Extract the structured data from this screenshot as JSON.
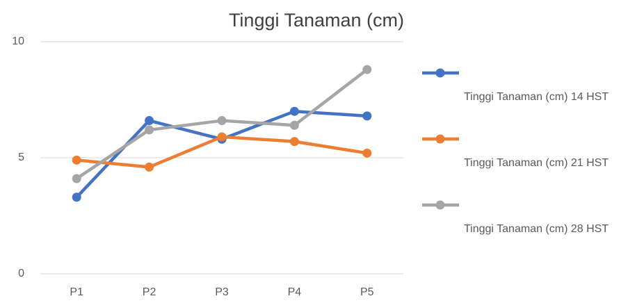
{
  "chart_data": {
    "type": "line",
    "title": "Tinggi Tanaman (cm)",
    "categories": [
      "P1",
      "P2",
      "P3",
      "P4",
      "P5"
    ],
    "series": [
      {
        "name": "Tinggi Tanaman (cm) 14 HST",
        "color": "#4472c4",
        "values": [
          3.3,
          6.6,
          5.8,
          7.0,
          6.8
        ]
      },
      {
        "name": "Tinggi Tanaman (cm) 21 HST",
        "color": "#ed7d31",
        "values": [
          4.9,
          4.6,
          5.9,
          5.7,
          5.2
        ]
      },
      {
        "name": "Tinggi Tanaman (cm) 28 HST",
        "color": "#a5a5a5",
        "values": [
          4.1,
          6.2,
          6.6,
          6.4,
          8.8
        ]
      }
    ],
    "ylim": [
      0,
      10
    ],
    "yticks": [
      0,
      5,
      10
    ],
    "grid": true,
    "legend": "right"
  }
}
